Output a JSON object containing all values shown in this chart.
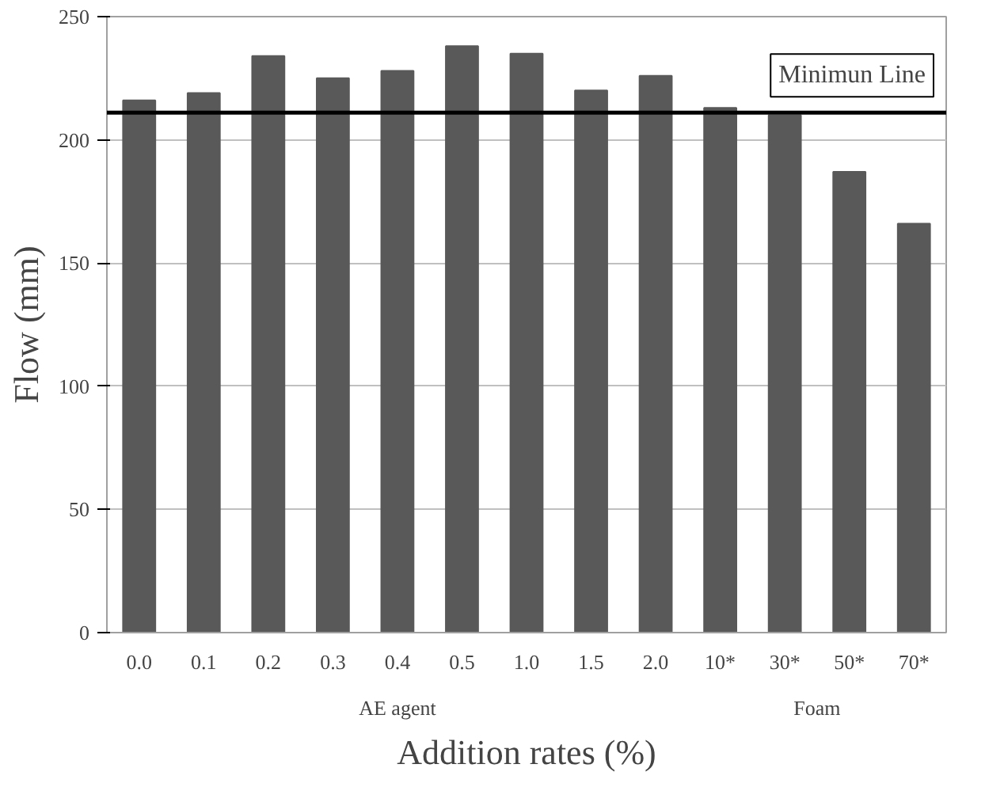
{
  "chart_data": {
    "type": "bar",
    "xlabel": "Addition rates (%)",
    "ylabel": "Flow (mm)",
    "categories": [
      "0.0",
      "0.1",
      "0.2",
      "0.3",
      "0.4",
      "0.5",
      "1.0",
      "1.5",
      "2.0",
      "10*",
      "30*",
      "50*",
      "70*"
    ],
    "values": [
      216,
      219,
      234,
      225,
      228,
      238,
      235,
      220,
      226,
      213,
      210,
      187,
      166
    ],
    "color": "#595959",
    "ylim": [
      0,
      250
    ],
    "yticks": [
      0,
      50,
      100,
      150,
      200,
      250
    ],
    "grid": "y",
    "ref_lines": [
      {
        "axis": "y",
        "value": 211,
        "label": "Minimun Line",
        "color": "#000000",
        "line_style": "solid"
      }
    ],
    "annotations": [
      "AE agent",
      "Foam"
    ]
  }
}
